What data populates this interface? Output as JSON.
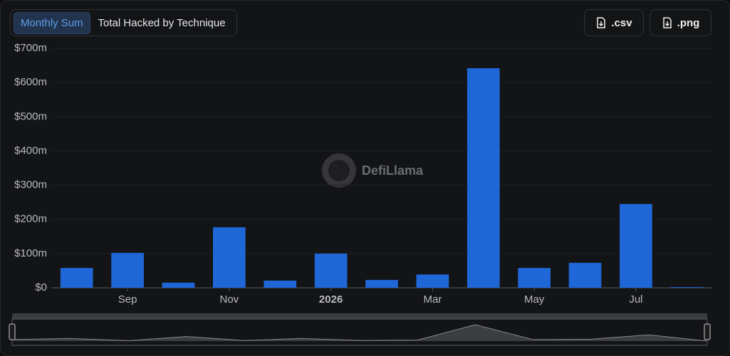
{
  "tabs": [
    "Monthly Sum",
    "Total Hacked by Technique"
  ],
  "buttons": [
    ".csv",
    ".png"
  ],
  "watermark": "DefiLlama",
  "chart_data": {
    "type": "bar",
    "categories": [
      null,
      "Sep",
      null,
      "Nov",
      null,
      "2026",
      null,
      "Mar",
      null,
      "May",
      null,
      "Jul",
      null
    ],
    "values": [
      58,
      102,
      15,
      177,
      21,
      100,
      23,
      39,
      642,
      58,
      73,
      245,
      2
    ],
    "color": "#1f66d6",
    "ylim": [
      0,
      700
    ],
    "yticks": [
      {
        "value": 0,
        "label": "$0"
      },
      {
        "value": 100,
        "label": "$100m"
      },
      {
        "value": 200,
        "label": "$200m"
      },
      {
        "value": 300,
        "label": "$300m"
      },
      {
        "value": 400,
        "label": "$400m"
      },
      {
        "value": 500,
        "label": "$500m"
      },
      {
        "value": 600,
        "label": "$600m"
      },
      {
        "value": 700,
        "label": "$700m"
      }
    ],
    "grid": true
  }
}
